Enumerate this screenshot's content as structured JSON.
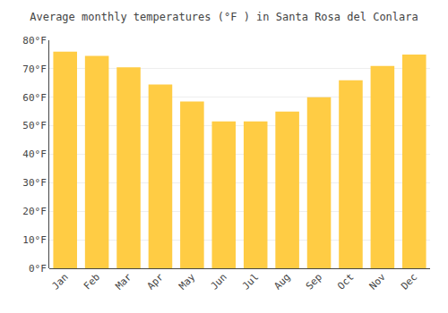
{
  "chart_data": {
    "type": "bar",
    "title": "Average monthly temperatures (°F ) in Santa Rosa del Conlara",
    "categories": [
      "Jan",
      "Feb",
      "Mar",
      "Apr",
      "May",
      "Jun",
      "Jul",
      "Aug",
      "Sep",
      "Oct",
      "Nov",
      "Dec"
    ],
    "values": [
      76,
      74.5,
      70.5,
      64.5,
      58.5,
      51.5,
      51.5,
      55,
      60,
      66,
      71,
      75
    ],
    "color": "#FFCC44",
    "ylim": [
      0,
      80
    ],
    "yticks": [
      {
        "value": 0,
        "label": "0°F"
      },
      {
        "value": 10,
        "label": "10°F"
      },
      {
        "value": 20,
        "label": "20°F"
      },
      {
        "value": 30,
        "label": "30°F"
      },
      {
        "value": 40,
        "label": "40°F"
      },
      {
        "value": 50,
        "label": "50°F"
      },
      {
        "value": 60,
        "label": "60°F"
      },
      {
        "value": 70,
        "label": "70°F"
      },
      {
        "value": 80,
        "label": "80°F"
      }
    ],
    "grid": true
  }
}
